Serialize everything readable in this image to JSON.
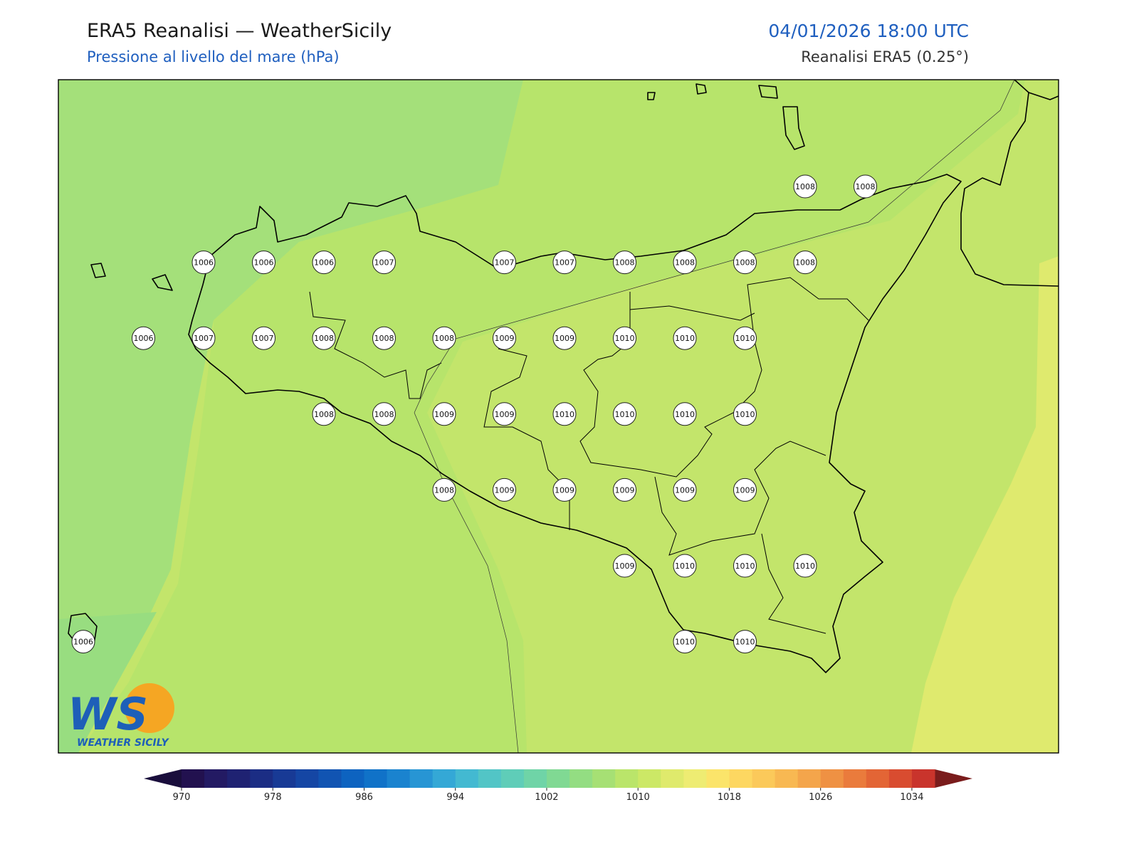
{
  "header": {
    "title": "ERA5 Reanalisi — WeatherSicily",
    "subtitle": "Pressione al livello del mare (hPa)",
    "datetime": "04/01/2026 18:00 UTC",
    "source": "Reanalisi ERA5 (0.25°)"
  },
  "pressure_rows": [
    [
      1008,
      1008
    ],
    [
      1006,
      1006,
      1006,
      1007,
      1007,
      1007,
      1008,
      1008,
      1008,
      1008
    ],
    [
      1006,
      1007,
      1007,
      1008,
      1008,
      1008,
      1009,
      1009,
      1010,
      1010,
      1010
    ],
    [
      1008,
      1008,
      1009,
      1009,
      1010,
      1010,
      1010,
      1010
    ],
    [
      1008,
      1009,
      1009,
      1009,
      1009,
      1009
    ],
    [
      1009,
      1010,
      1010,
      1010
    ],
    [
      1006,
      1010,
      1010
    ]
  ],
  "colorbar": {
    "range": [
      970,
      1036
    ],
    "ticks": [
      970,
      978,
      986,
      994,
      1002,
      1010,
      1018,
      1026,
      1034
    ],
    "colors": [
      "#22114f",
      "#231a63",
      "#1f2272",
      "#1b2d84",
      "#183a95",
      "#1546a4",
      "#1154b2",
      "#0d63c0",
      "#1072c8",
      "#1a83cf",
      "#2795d4",
      "#34a8d6",
      "#43b9d1",
      "#52c5c6",
      "#5fcdb8",
      "#6fd4a7",
      "#80d993",
      "#93dd82",
      "#a6e074",
      "#bae56a",
      "#cce866",
      "#dfea6c",
      "#eeec72",
      "#fbe46a",
      "#fdd761",
      "#fbc95a",
      "#f8b852",
      "#f4a54b",
      "#ef9143",
      "#ea7b3c",
      "#e36535",
      "#d94c30",
      "#c9342c"
    ]
  },
  "logo": {
    "mark": "WS",
    "text": "WEATHER SICILY"
  }
}
